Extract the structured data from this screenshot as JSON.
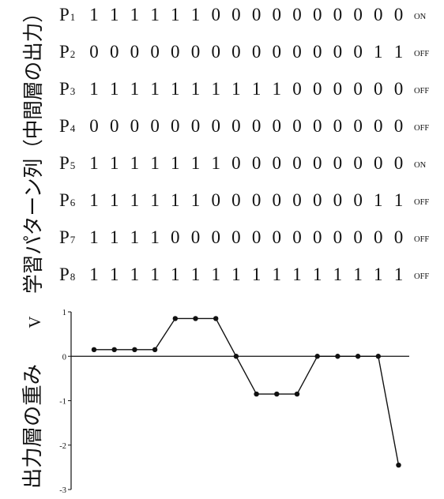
{
  "figure": {
    "pattern_axis_label": "学習パターン列（中間層の出力）",
    "weight_axis_label": "出力層の重み",
    "weight_symbol": "V"
  },
  "patterns": [
    {
      "prefix": "P",
      "index": "1",
      "bits": [
        1,
        1,
        1,
        1,
        1,
        1,
        0,
        0,
        0,
        0,
        0,
        0,
        0,
        0,
        0,
        0
      ],
      "state": "ON"
    },
    {
      "prefix": "P",
      "index": "2",
      "bits": [
        0,
        0,
        0,
        0,
        0,
        0,
        0,
        0,
        0,
        0,
        0,
        0,
        0,
        0,
        1,
        1
      ],
      "state": "OFF"
    },
    {
      "prefix": "P",
      "index": "3",
      "bits": [
        1,
        1,
        1,
        1,
        1,
        1,
        1,
        1,
        1,
        1,
        0,
        0,
        0,
        0,
        0,
        0
      ],
      "state": "OFF"
    },
    {
      "prefix": "P",
      "index": "4",
      "bits": [
        0,
        0,
        0,
        0,
        0,
        0,
        0,
        0,
        0,
        0,
        0,
        0,
        0,
        0,
        0,
        0
      ],
      "state": "OFF"
    },
    {
      "prefix": "P",
      "index": "5",
      "bits": [
        1,
        1,
        1,
        1,
        1,
        1,
        1,
        0,
        0,
        0,
        0,
        0,
        0,
        0,
        0,
        0
      ],
      "state": "ON"
    },
    {
      "prefix": "P",
      "index": "6",
      "bits": [
        1,
        1,
        1,
        1,
        1,
        1,
        0,
        0,
        0,
        0,
        0,
        0,
        0,
        0,
        1,
        1
      ],
      "state": "OFF"
    },
    {
      "prefix": "P",
      "index": "7",
      "bits": [
        1,
        1,
        1,
        1,
        0,
        0,
        0,
        0,
        0,
        0,
        0,
        0,
        0,
        0,
        0,
        0
      ],
      "state": "OFF"
    },
    {
      "prefix": "P",
      "index": "8",
      "bits": [
        1,
        1,
        1,
        1,
        1,
        1,
        1,
        1,
        1,
        1,
        1,
        1,
        1,
        1,
        1,
        1
      ],
      "state": "OFF"
    }
  ],
  "chart_data": {
    "type": "line",
    "x": [
      1,
      2,
      3,
      4,
      5,
      6,
      7,
      8,
      9,
      10,
      11,
      12,
      13,
      14,
      15,
      16
    ],
    "values": [
      0.15,
      0.15,
      0.15,
      0.15,
      0.85,
      0.85,
      0.85,
      0.0,
      -0.85,
      -0.85,
      -0.85,
      0.0,
      0.0,
      0.0,
      0.0,
      -2.45
    ],
    "ylim": [
      -3,
      1
    ],
    "yticks": [
      "1",
      "0",
      "-1",
      "-2",
      "-3"
    ],
    "ytick_values": [
      1,
      0,
      -1,
      -2,
      -3
    ],
    "grid": false,
    "legend": "none"
  }
}
